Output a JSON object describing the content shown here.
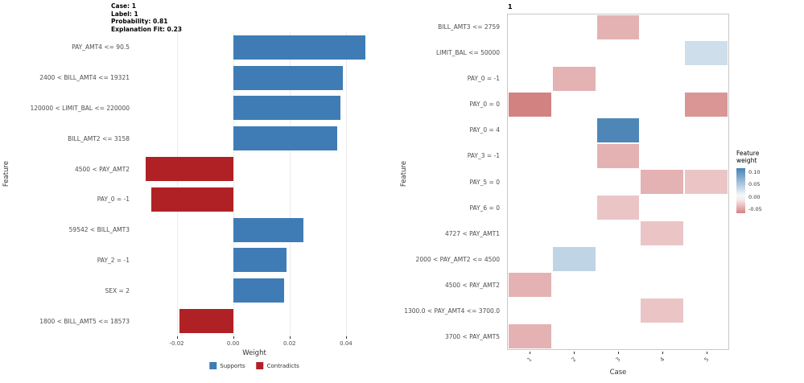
{
  "chart_data": [
    {
      "type": "bar",
      "orientation": "horizontal",
      "annotation": [
        "Case: 1",
        "Label: 1",
        "Probability: 0.81",
        "Explanation Fit: 0.23"
      ],
      "xlabel": "Weight",
      "ylabel": "Feature",
      "categories": [
        "PAY_AMT4 <= 90.5",
        "2400 < BILL_AMT4 <= 19321",
        "120000 < LIMIT_BAL <= 220000",
        "BILL_AMT2 <= 3158",
        "4500 < PAY_AMT2",
        "PAY_0 = -1",
        "59542 < BILL_AMT3",
        "PAY_2 = -1",
        "SEX = 2",
        "1800 < BILL_AMT5 <= 18573"
      ],
      "values": [
        0.047,
        0.039,
        0.038,
        0.037,
        -0.031,
        -0.029,
        0.025,
        0.019,
        0.018,
        -0.019
      ],
      "xlim": [
        -0.035,
        0.05
      ],
      "x_ticks": [
        -0.02,
        0,
        0.02,
        0.04
      ],
      "grid": true,
      "legend_position": "bottom",
      "legend": [
        {
          "label": "Supports",
          "color": "#3F7CB5"
        },
        {
          "label": "Contradicts",
          "color": "#B02125"
        }
      ]
    },
    {
      "type": "heatmap",
      "facet_title": "1",
      "xlabel": "Case",
      "ylabel": "Feature",
      "rows": [
        "BILL_AMT3 <= 2759",
        "LIMIT_BAL <= 50000",
        "PAY_0 = -1",
        "PAY_0 = 0",
        "PAY_0 = 4",
        "PAY_3 = -1",
        "PAY_5 = 0",
        "PAY_6 = 0",
        "4727 < PAY_AMT1",
        "2000 < PAY_AMT2 <= 4500",
        "4500 < PAY_AMT2",
        "1300.0 < PAY_AMT4 <= 3700.0",
        "3700 < PAY_AMT5"
      ],
      "columns": [
        "1",
        "2",
        "3",
        "4",
        "5"
      ],
      "cells": [
        {
          "row": "BILL_AMT3 <= 2759",
          "case": "3",
          "value": -0.04
        },
        {
          "row": "LIMIT_BAL <= 50000",
          "case": "5",
          "value": 0.03
        },
        {
          "row": "PAY_0 = -1",
          "case": "2",
          "value": -0.04
        },
        {
          "row": "PAY_0 = 0",
          "case": "1",
          "value": -0.065
        },
        {
          "row": "PAY_0 = 0",
          "case": "5",
          "value": -0.055
        },
        {
          "row": "PAY_0 = 4",
          "case": "3",
          "value": 0.11
        },
        {
          "row": "PAY_3 = -1",
          "case": "3",
          "value": -0.04
        },
        {
          "row": "PAY_5 = 0",
          "case": "4",
          "value": -0.04
        },
        {
          "row": "PAY_5 = 0",
          "case": "5",
          "value": -0.03
        },
        {
          "row": "PAY_6 = 0",
          "case": "3",
          "value": -0.03
        },
        {
          "row": "4727 < PAY_AMT1",
          "case": "4",
          "value": -0.03
        },
        {
          "row": "2000 < PAY_AMT2 <= 4500",
          "case": "2",
          "value": 0.04
        },
        {
          "row": "4500 < PAY_AMT2",
          "case": "1",
          "value": -0.04
        },
        {
          "row": "1300.0 < PAY_AMT4 <= 3700.0",
          "case": "4",
          "value": -0.03
        },
        {
          "row": "3700 < PAY_AMT5",
          "case": "1",
          "value": -0.04
        }
      ],
      "color_scale": {
        "legend_title": "Feature weight",
        "ticks": [
          0.1,
          0.05,
          0,
          -0.05
        ],
        "domain": [
          -0.115,
          0.115
        ],
        "legend_range": [
          -0.065,
          0.115
        ],
        "high_color": "#4682B4",
        "mid_color": "#FFFFFF",
        "low_color": "#B22222"
      }
    }
  ]
}
